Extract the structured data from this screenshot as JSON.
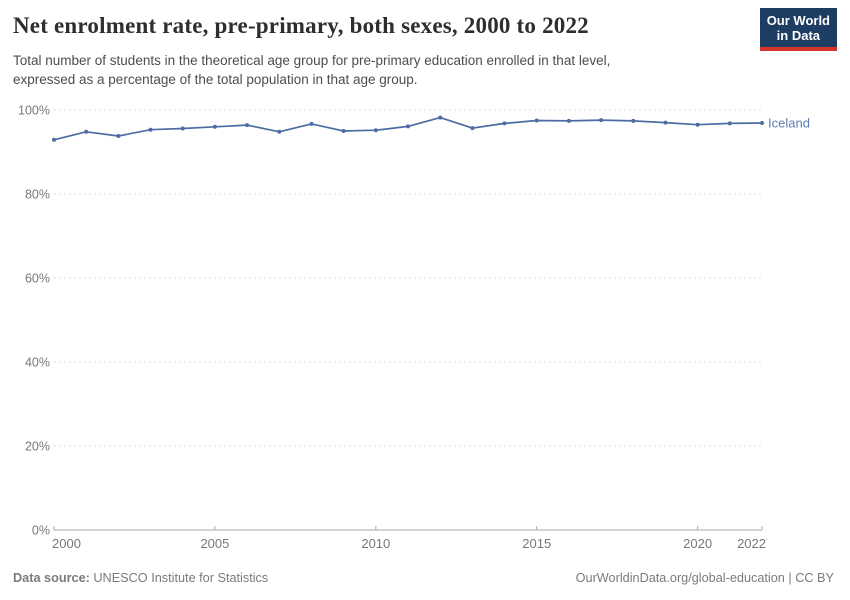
{
  "header": {
    "title": "Net enrolment rate, pre-primary, both sexes, 2000 to 2022",
    "subtitle_lines": [
      "Total number of students in the theoretical age group for pre-primary education enrolled in that level,",
      "expressed as a percentage of the total population in that age group."
    ]
  },
  "logo": {
    "line1": "Our World",
    "line2": "in Data"
  },
  "chart_data": {
    "type": "line",
    "title": "Net enrolment rate, pre-primary, both sexes, 2000 to 2022",
    "x": [
      2000,
      2001,
      2002,
      2003,
      2004,
      2005,
      2006,
      2007,
      2008,
      2009,
      2010,
      2011,
      2012,
      2013,
      2014,
      2015,
      2016,
      2017,
      2018,
      2019,
      2020,
      2021,
      2022
    ],
    "series": [
      {
        "name": "Iceland",
        "values": [
          92.9,
          94.8,
          93.8,
          95.3,
          95.6,
          96.0,
          96.4,
          94.8,
          96.7,
          95.0,
          95.2,
          96.1,
          98.2,
          95.7,
          96.8,
          97.5,
          97.4,
          97.6,
          97.4,
          97.0,
          96.5,
          96.8,
          96.9
        ]
      }
    ],
    "xlabel": "",
    "ylabel": "",
    "ylim": [
      0,
      100
    ],
    "yticks": [
      0,
      20,
      40,
      60,
      80,
      100
    ],
    "ytick_suffix": "%",
    "xticks": [
      2000,
      2005,
      2010,
      2015,
      2020,
      2022
    ],
    "grid": "horizontal dashed",
    "legend_position": "end-of-line label"
  },
  "footer": {
    "source_label": "Data source:",
    "source_value": "UNESCO Institute for Statistics",
    "right_text": "OurWorldinData.org/global-education | CC BY"
  },
  "colors": {
    "line": "#4c6ca3",
    "entity_label": "#5d7fb0",
    "grid": "#dcdcdc",
    "axis": "#a8a8a8",
    "tick_text": "#787878",
    "logo_bg": "#1d3d63",
    "logo_accent": "#d8352a"
  }
}
